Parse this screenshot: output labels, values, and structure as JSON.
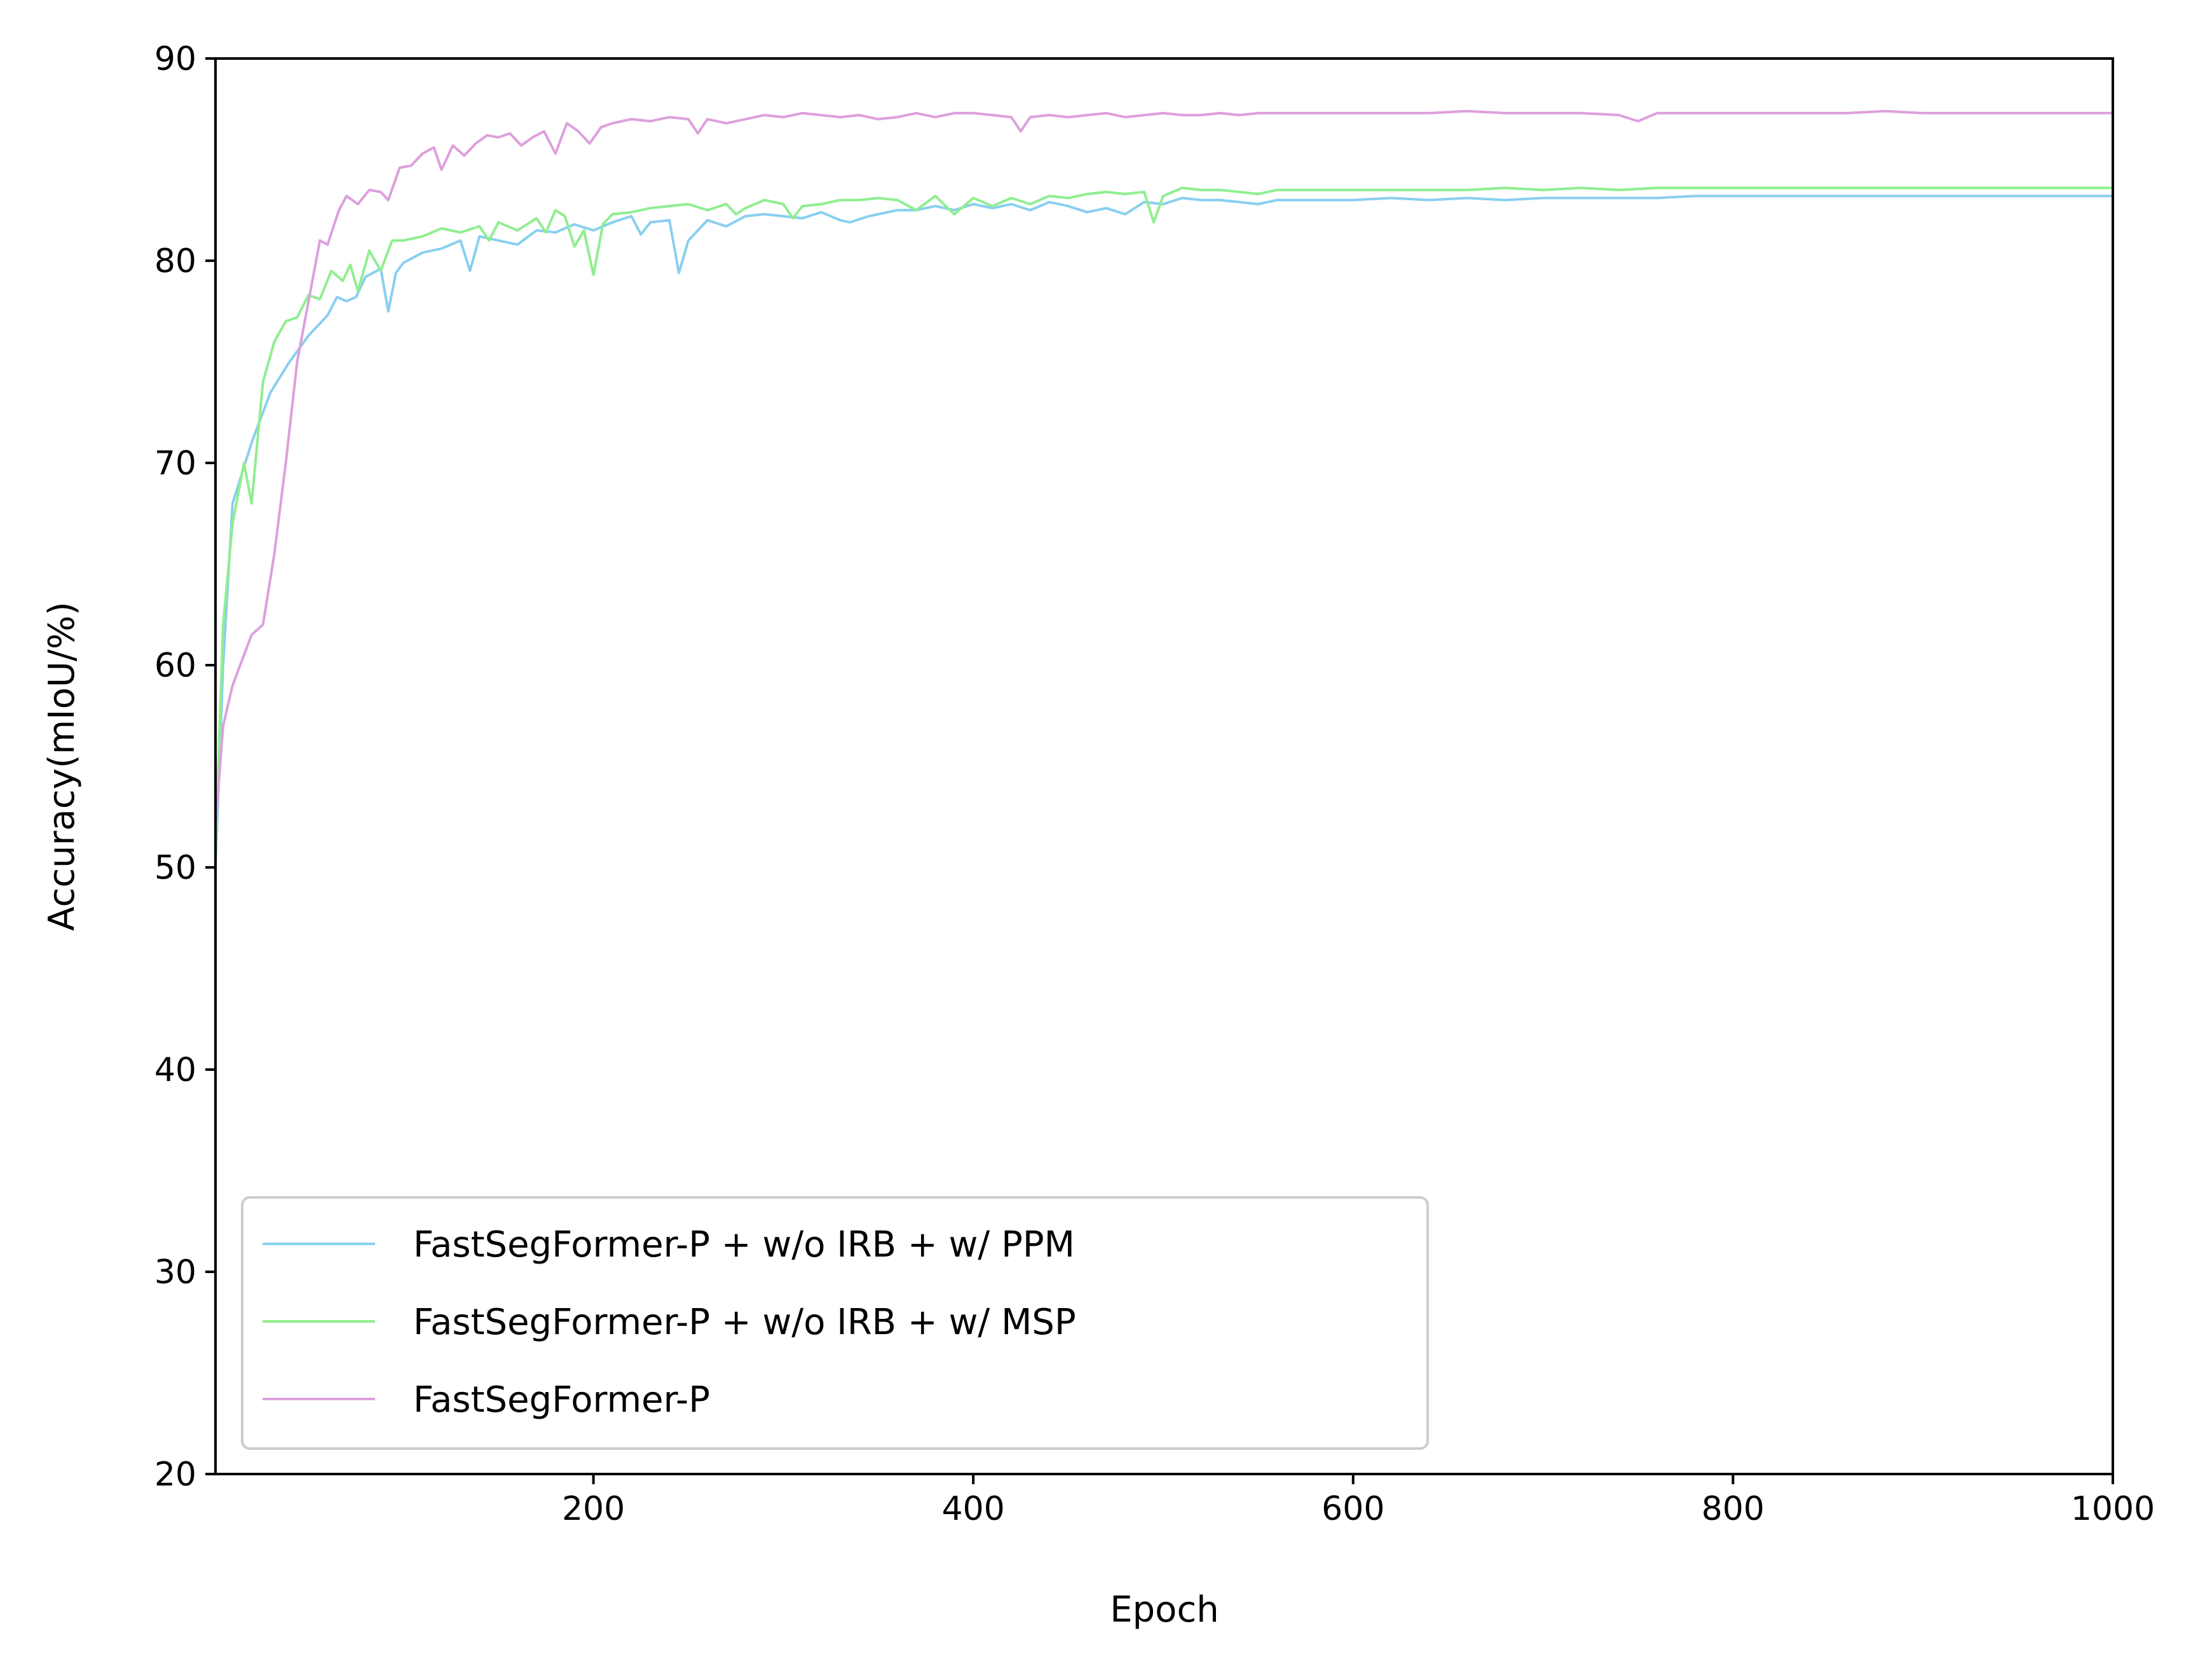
{
  "chart_data": {
    "type": "line",
    "title": "",
    "xlabel": "Epoch",
    "ylabel": "Accuracy(mIoU/%)",
    "xlim": [
      1,
      1000
    ],
    "ylim": [
      20,
      90
    ],
    "xticks": [
      200,
      400,
      600,
      800,
      1000
    ],
    "yticks": [
      20,
      30,
      40,
      50,
      60,
      70,
      80,
      90
    ],
    "grid": false,
    "legend_position": "lower-left",
    "series": [
      {
        "name": "FastSegFormer-P + w/o IRB + w/ PPM",
        "color": "#89cff0",
        "points": [
          [
            1,
            50
          ],
          [
            5,
            60
          ],
          [
            10,
            68
          ],
          [
            20,
            71
          ],
          [
            30,
            73.5
          ],
          [
            40,
            75
          ],
          [
            50,
            76.3
          ],
          [
            60,
            77.3
          ],
          [
            65,
            78.2
          ],
          [
            70,
            78
          ],
          [
            75,
            78.2
          ],
          [
            80,
            79.2
          ],
          [
            88,
            79.6
          ],
          [
            92,
            77.5
          ],
          [
            96,
            79.4
          ],
          [
            100,
            79.9
          ],
          [
            110,
            80.4
          ],
          [
            120,
            80.6
          ],
          [
            130,
            81
          ],
          [
            135,
            79.5
          ],
          [
            140,
            81.2
          ],
          [
            150,
            81
          ],
          [
            160,
            80.8
          ],
          [
            170,
            81.5
          ],
          [
            180,
            81.4
          ],
          [
            190,
            81.8
          ],
          [
            200,
            81.5
          ],
          [
            210,
            81.9
          ],
          [
            220,
            82.2
          ],
          [
            225,
            81.3
          ],
          [
            230,
            81.9
          ],
          [
            240,
            82
          ],
          [
            245,
            79.4
          ],
          [
            250,
            81
          ],
          [
            260,
            82
          ],
          [
            270,
            81.7
          ],
          [
            280,
            82.2
          ],
          [
            290,
            82.3
          ],
          [
            300,
            82.2
          ],
          [
            310,
            82.1
          ],
          [
            320,
            82.4
          ],
          [
            330,
            82
          ],
          [
            335,
            81.9
          ],
          [
            345,
            82.2
          ],
          [
            360,
            82.5
          ],
          [
            370,
            82.5
          ],
          [
            380,
            82.7
          ],
          [
            390,
            82.5
          ],
          [
            400,
            82.8
          ],
          [
            410,
            82.6
          ],
          [
            420,
            82.8
          ],
          [
            430,
            82.5
          ],
          [
            440,
            82.9
          ],
          [
            450,
            82.7
          ],
          [
            460,
            82.4
          ],
          [
            470,
            82.6
          ],
          [
            480,
            82.3
          ],
          [
            490,
            82.9
          ],
          [
            500,
            82.8
          ],
          [
            510,
            83.1
          ],
          [
            520,
            83
          ],
          [
            530,
            83
          ],
          [
            540,
            82.9
          ],
          [
            550,
            82.8
          ],
          [
            560,
            83
          ],
          [
            580,
            83
          ],
          [
            600,
            83
          ],
          [
            620,
            83.1
          ],
          [
            640,
            83
          ],
          [
            660,
            83.1
          ],
          [
            680,
            83
          ],
          [
            700,
            83.1
          ],
          [
            720,
            83.1
          ],
          [
            740,
            83.1
          ],
          [
            760,
            83.1
          ],
          [
            780,
            83.2
          ],
          [
            800,
            83.2
          ],
          [
            820,
            83.2
          ],
          [
            840,
            83.2
          ],
          [
            860,
            83.2
          ],
          [
            880,
            83.2
          ],
          [
            900,
            83.2
          ],
          [
            920,
            83.2
          ],
          [
            940,
            83.2
          ],
          [
            960,
            83.2
          ],
          [
            980,
            83.2
          ],
          [
            1000,
            83.2
          ]
        ]
      },
      {
        "name": "FastSegFormer-P + w/o IRB + w/ MSP",
        "color": "#90ee90",
        "points": [
          [
            1,
            51
          ],
          [
            5,
            62
          ],
          [
            10,
            67
          ],
          [
            16,
            70
          ],
          [
            20,
            68
          ],
          [
            26,
            74
          ],
          [
            32,
            76
          ],
          [
            38,
            77
          ],
          [
            44,
            77.2
          ],
          [
            50,
            78.3
          ],
          [
            56,
            78.1
          ],
          [
            62,
            79.5
          ],
          [
            68,
            79
          ],
          [
            72,
            79.8
          ],
          [
            76,
            78.5
          ],
          [
            82,
            80.5
          ],
          [
            88,
            79.5
          ],
          [
            94,
            81
          ],
          [
            100,
            81
          ],
          [
            110,
            81.2
          ],
          [
            120,
            81.6
          ],
          [
            130,
            81.4
          ],
          [
            140,
            81.7
          ],
          [
            145,
            81
          ],
          [
            150,
            81.9
          ],
          [
            160,
            81.5
          ],
          [
            170,
            82.1
          ],
          [
            175,
            81.4
          ],
          [
            180,
            82.5
          ],
          [
            185,
            82.2
          ],
          [
            190,
            80.7
          ],
          [
            195,
            81.5
          ],
          [
            200,
            79.3
          ],
          [
            205,
            81.8
          ],
          [
            210,
            82.3
          ],
          [
            220,
            82.4
          ],
          [
            230,
            82.6
          ],
          [
            240,
            82.7
          ],
          [
            250,
            82.8
          ],
          [
            260,
            82.5
          ],
          [
            270,
            82.8
          ],
          [
            275,
            82.3
          ],
          [
            280,
            82.6
          ],
          [
            290,
            83
          ],
          [
            300,
            82.8
          ],
          [
            305,
            82.1
          ],
          [
            310,
            82.7
          ],
          [
            320,
            82.8
          ],
          [
            330,
            83
          ],
          [
            340,
            83
          ],
          [
            350,
            83.1
          ],
          [
            360,
            83
          ],
          [
            370,
            82.5
          ],
          [
            380,
            83.2
          ],
          [
            390,
            82.3
          ],
          [
            400,
            83.1
          ],
          [
            410,
            82.7
          ],
          [
            420,
            83.1
          ],
          [
            430,
            82.8
          ],
          [
            440,
            83.2
          ],
          [
            450,
            83.1
          ],
          [
            460,
            83.3
          ],
          [
            470,
            83.4
          ],
          [
            480,
            83.3
          ],
          [
            490,
            83.4
          ],
          [
            495,
            81.9
          ],
          [
            500,
            83.2
          ],
          [
            510,
            83.6
          ],
          [
            520,
            83.5
          ],
          [
            530,
            83.5
          ],
          [
            540,
            83.4
          ],
          [
            550,
            83.3
          ],
          [
            560,
            83.5
          ],
          [
            580,
            83.5
          ],
          [
            600,
            83.5
          ],
          [
            620,
            83.5
          ],
          [
            640,
            83.5
          ],
          [
            660,
            83.5
          ],
          [
            680,
            83.6
          ],
          [
            700,
            83.5
          ],
          [
            720,
            83.6
          ],
          [
            740,
            83.5
          ],
          [
            760,
            83.6
          ],
          [
            780,
            83.6
          ],
          [
            800,
            83.6
          ],
          [
            820,
            83.6
          ],
          [
            840,
            83.6
          ],
          [
            860,
            83.6
          ],
          [
            880,
            83.6
          ],
          [
            900,
            83.6
          ],
          [
            920,
            83.6
          ],
          [
            940,
            83.6
          ],
          [
            960,
            83.6
          ],
          [
            980,
            83.6
          ],
          [
            1000,
            83.6
          ]
        ]
      },
      {
        "name": "FastSegFormer-P",
        "color": "#dda0dd",
        "points": [
          [
            1,
            52
          ],
          [
            5,
            57
          ],
          [
            10,
            59
          ],
          [
            20,
            61.5
          ],
          [
            26,
            62
          ],
          [
            32,
            65.5
          ],
          [
            38,
            70
          ],
          [
            44,
            75
          ],
          [
            50,
            78
          ],
          [
            56,
            81
          ],
          [
            60,
            80.8
          ],
          [
            66,
            82.5
          ],
          [
            70,
            83.2
          ],
          [
            76,
            82.8
          ],
          [
            82,
            83.5
          ],
          [
            88,
            83.4
          ],
          [
            92,
            83
          ],
          [
            98,
            84.6
          ],
          [
            104,
            84.7
          ],
          [
            110,
            85.3
          ],
          [
            116,
            85.6
          ],
          [
            120,
            84.5
          ],
          [
            126,
            85.7
          ],
          [
            132,
            85.2
          ],
          [
            138,
            85.8
          ],
          [
            144,
            86.2
          ],
          [
            150,
            86.1
          ],
          [
            156,
            86.3
          ],
          [
            162,
            85.7
          ],
          [
            168,
            86.1
          ],
          [
            174,
            86.4
          ],
          [
            180,
            85.3
          ],
          [
            186,
            86.8
          ],
          [
            192,
            86.4
          ],
          [
            198,
            85.8
          ],
          [
            204,
            86.6
          ],
          [
            210,
            86.8
          ],
          [
            220,
            87
          ],
          [
            230,
            86.9
          ],
          [
            240,
            87.1
          ],
          [
            250,
            87
          ],
          [
            255,
            86.3
          ],
          [
            260,
            87
          ],
          [
            270,
            86.8
          ],
          [
            280,
            87
          ],
          [
            290,
            87.2
          ],
          [
            300,
            87.1
          ],
          [
            310,
            87.3
          ],
          [
            320,
            87.2
          ],
          [
            330,
            87.1
          ],
          [
            340,
            87.2
          ],
          [
            350,
            87
          ],
          [
            360,
            87.1
          ],
          [
            370,
            87.3
          ],
          [
            380,
            87.1
          ],
          [
            390,
            87.3
          ],
          [
            400,
            87.3
          ],
          [
            410,
            87.2
          ],
          [
            420,
            87.1
          ],
          [
            425,
            86.4
          ],
          [
            430,
            87.1
          ],
          [
            440,
            87.2
          ],
          [
            450,
            87.1
          ],
          [
            460,
            87.2
          ],
          [
            470,
            87.3
          ],
          [
            480,
            87.1
          ],
          [
            490,
            87.2
          ],
          [
            500,
            87.3
          ],
          [
            510,
            87.2
          ],
          [
            520,
            87.2
          ],
          [
            530,
            87.3
          ],
          [
            540,
            87.2
          ],
          [
            550,
            87.3
          ],
          [
            560,
            87.3
          ],
          [
            580,
            87.3
          ],
          [
            600,
            87.3
          ],
          [
            620,
            87.3
          ],
          [
            640,
            87.3
          ],
          [
            660,
            87.4
          ],
          [
            680,
            87.3
          ],
          [
            700,
            87.3
          ],
          [
            720,
            87.3
          ],
          [
            740,
            87.2
          ],
          [
            750,
            86.9
          ],
          [
            760,
            87.3
          ],
          [
            780,
            87.3
          ],
          [
            800,
            87.3
          ],
          [
            820,
            87.3
          ],
          [
            840,
            87.3
          ],
          [
            860,
            87.3
          ],
          [
            880,
            87.4
          ],
          [
            900,
            87.3
          ],
          [
            920,
            87.3
          ],
          [
            940,
            87.3
          ],
          [
            960,
            87.3
          ],
          [
            980,
            87.3
          ],
          [
            1000,
            87.3
          ]
        ]
      }
    ]
  }
}
